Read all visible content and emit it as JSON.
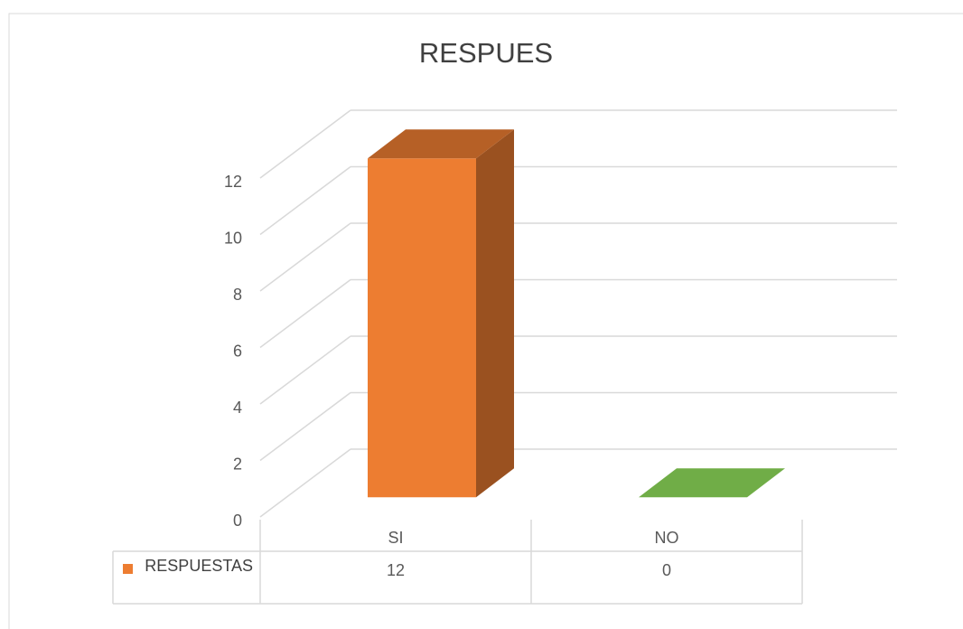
{
  "chart_data": {
    "type": "bar3d",
    "title": "RESPUES",
    "categories": [
      "SI",
      "NO"
    ],
    "series": [
      {
        "name": "RESPUESTAS",
        "color": "#ED7D31",
        "point_colors": [
          "#ED7D31",
          "#70AD47"
        ],
        "values": [
          12,
          0
        ]
      }
    ],
    "ylim": [
      0,
      12
    ],
    "yticks": [
      0,
      2,
      4,
      6,
      8,
      10,
      12
    ],
    "grid": true,
    "data_table": true
  }
}
